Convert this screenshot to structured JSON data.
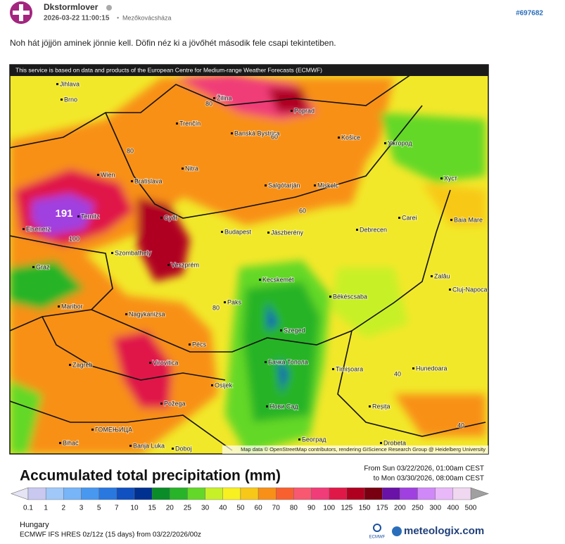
{
  "post": {
    "author": "Dkstormlover",
    "timestamp": "2026-03-22 11:00:15",
    "separator": "•",
    "location": "Mezőkovácsháza",
    "id": "#697682",
    "body": "Noh hát jöjjön aminek jönnie kell. Döfin néz ki a jövőhét második fele csapi tekintetiben."
  },
  "map": {
    "notice": "This service is based on data and products of the European Centre for Medium-range Weather Forecasts (ECMWF)",
    "attribution": "Map data © OpenStreetMap contributors, rendering GIScience Research Group @ Heidelberg University",
    "peak_value": "191",
    "cities": [
      "Jihlava",
      "Brno",
      "Žilina",
      "Poprad",
      "Trenčín",
      "Banská Bystrica",
      "Košice",
      "Ужгород",
      "Wien",
      "Bratislava",
      "Nitra",
      "Salgótarján",
      "Miskolc",
      "Хуст",
      "Eisenerz",
      "Ternitz",
      "Győr",
      "Budapest",
      "Jászberény",
      "Debrecen",
      "Carei",
      "Baia Mare",
      "Szombathely",
      "Veszprém",
      "Zalău",
      "Graz",
      "Kecskemét",
      "Cluj-Napoca",
      "Maribor",
      "Paks",
      "Békéscsaba",
      "Nagykanizsa",
      "Szeged",
      "Pécs",
      "Zagreb",
      "Virovitica",
      "Бачка Топола",
      "Timișoara",
      "Hunedoara",
      "Osijek",
      "Požega",
      "Нови Сад",
      "Reșița",
      "ГОМЕЊИЦА",
      "Bihać",
      "Banja Luka",
      "Doboj",
      "Београд",
      "Drobeta"
    ],
    "contour_labels": [
      "80",
      "80",
      "60",
      "80",
      "100",
      "60",
      "40",
      "40"
    ]
  },
  "legend": {
    "title": "Accumulated total precipitation (mm)",
    "from": "From Sun 03/22/2026, 01:00am CEST",
    "to": "to Mon 03/30/2026, 08:00am CEST",
    "labels": [
      "0.1",
      "1",
      "2",
      "3",
      "5",
      "7",
      "10",
      "15",
      "20",
      "25",
      "30",
      "40",
      "50",
      "60",
      "70",
      "80",
      "90",
      "100",
      "125",
      "150",
      "175",
      "200",
      "250",
      "300",
      "400",
      "500"
    ],
    "colors": [
      "#c8c8f0",
      "#a0c8f8",
      "#78b4f8",
      "#4898f0",
      "#2878e0",
      "#1050c0",
      "#003090",
      "#0a8c28",
      "#28b428",
      "#64d828",
      "#c8f028",
      "#f8f020",
      "#f8c818",
      "#f89018",
      "#f86030",
      "#f85870",
      "#f03c78",
      "#e01848",
      "#b00020",
      "#780010",
      "#6a12a8",
      "#a040e0",
      "#d088f8",
      "#e8b8f8",
      "#f0d8f0"
    ],
    "low_color": "#e4e4f4",
    "high_color": "#a0a0a0"
  },
  "footer": {
    "region": "Hungary",
    "model": "ECMWF IFS HRES 0z/12z (15 days) from 03/22/2026/00z",
    "ecmwf": "ECMWF",
    "brand": "meteologix.com"
  }
}
